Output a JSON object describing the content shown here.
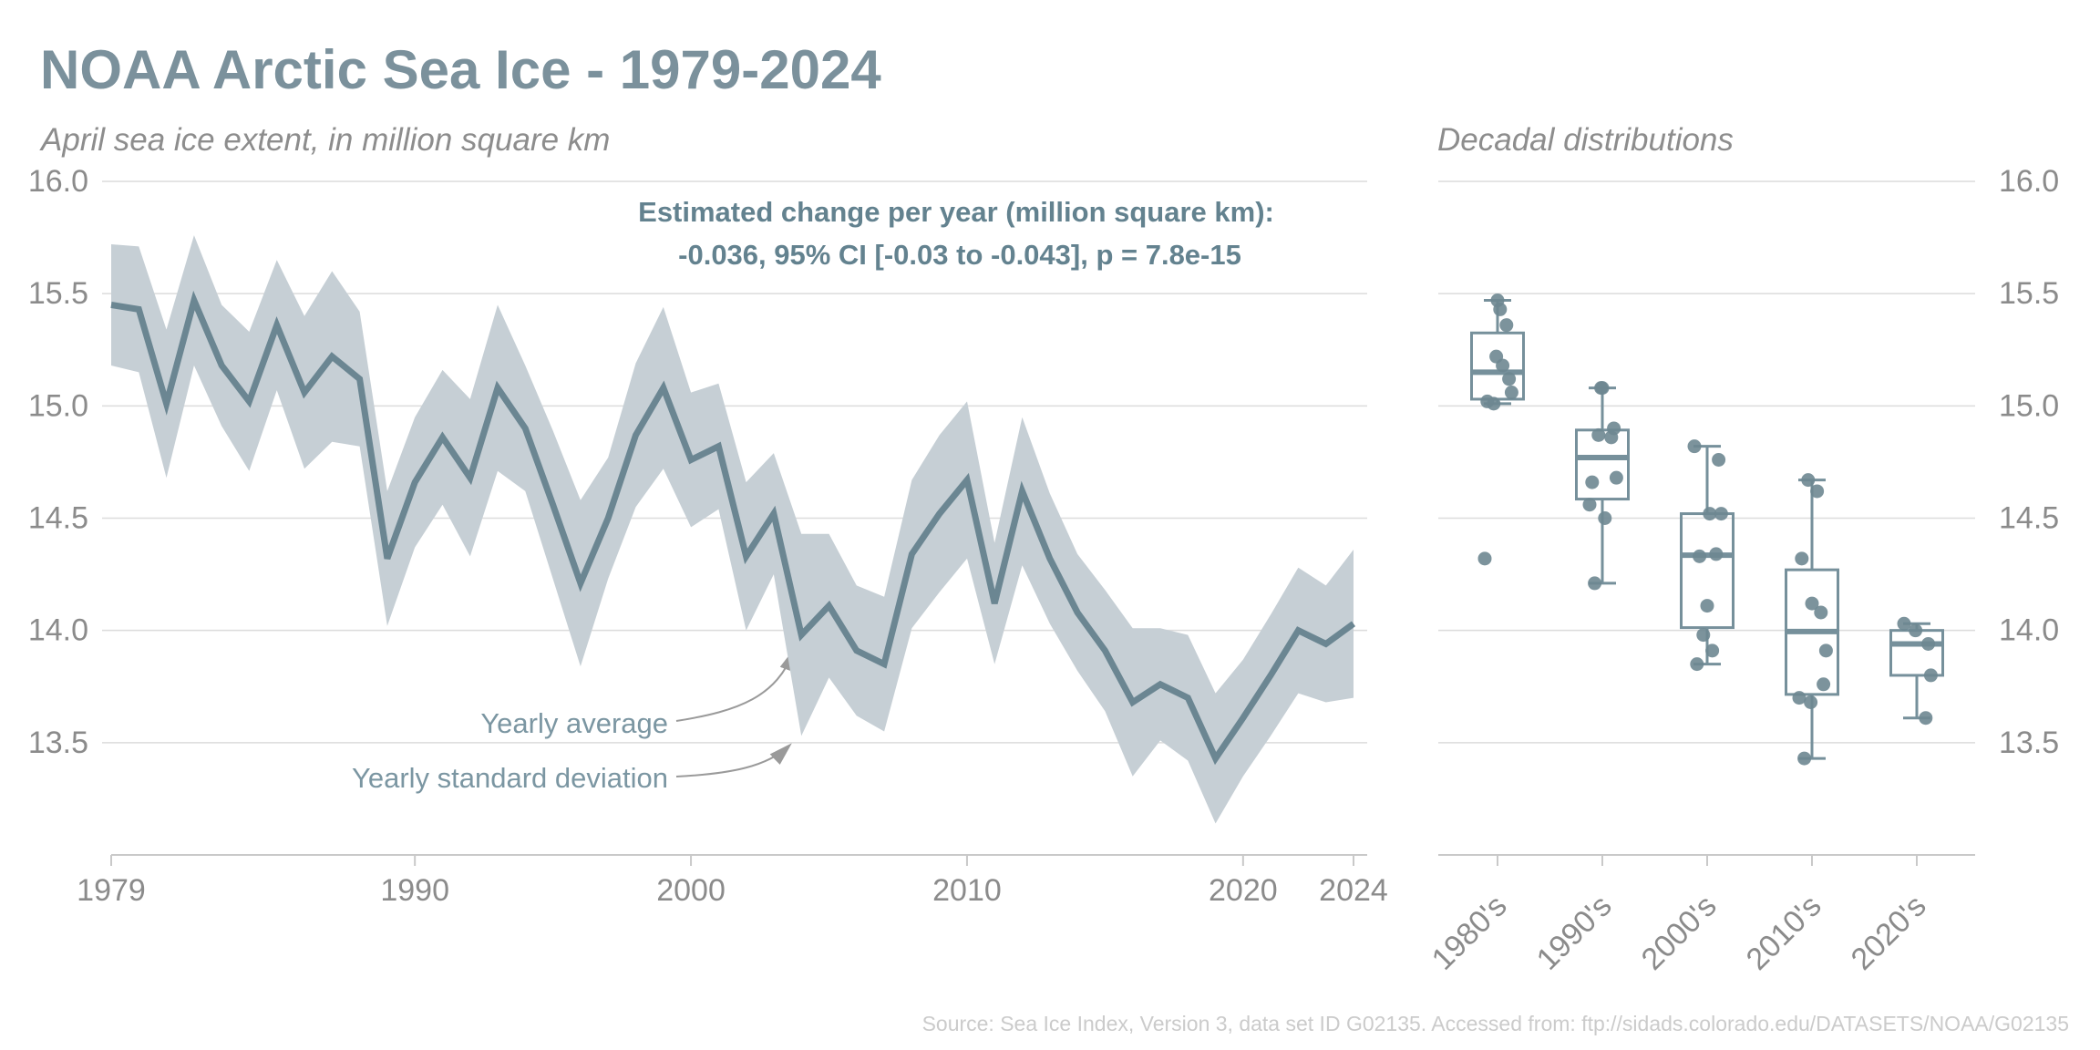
{
  "header": {
    "title": "NOAA Arctic Sea Ice - 1979-2024",
    "subtitle": "April sea ice extent, in million square km"
  },
  "right_panel": {
    "title": "Decadal distributions"
  },
  "annotations": {
    "trend_line1": "Estimated change per year (million square km):",
    "trend_line2": "-0.036, 95% CI [-0.03 to -0.043], p = 7.8e-15",
    "avg_label": "Yearly average",
    "std_label": "Yearly standard deviation"
  },
  "footer": {
    "source": "Source: Sea Ice Index, Version 3, data set ID G02135. Accessed from: ftp://sidads.colorado.edu/DATASETS/NOAA/G02135"
  },
  "colors": {
    "title": "#7b919c",
    "subtitle": "#8d8d8d",
    "line": "#6b8692",
    "band": "#c6cfd5",
    "box": "#76909b",
    "dot": "#6e8791",
    "grid": "#dcdcdc",
    "axis": "#c9c9c9",
    "tick_label": "#8b8b8b",
    "annotation": "#63828f",
    "pointer_label": "#7b96a2",
    "arrow": "#9a9a9a",
    "footer": "#cbcbcb"
  },
  "chart_data": [
    {
      "type": "line",
      "title": "April sea ice extent, in million square km",
      "ylabel": "million square km",
      "ylim": [
        13.0,
        16.0
      ],
      "y_ticks": [
        "16.0",
        "15.5",
        "15.0",
        "14.5",
        "14.0",
        "13.5"
      ],
      "y_tick_values": [
        16.0,
        15.5,
        15.0,
        14.5,
        14.0,
        13.5
      ],
      "x_ticks": [
        "1979",
        "1990",
        "2000",
        "2010",
        "2020",
        "2024"
      ],
      "x_tick_values": [
        1979,
        1990,
        2000,
        2010,
        2020,
        2024
      ],
      "grid": true,
      "series": [
        {
          "name": "Yearly average",
          "role": "mean"
        },
        {
          "name": "Yearly standard deviation",
          "role": "band"
        }
      ],
      "years": [
        1979,
        1980,
        1981,
        1982,
        1983,
        1984,
        1985,
        1986,
        1987,
        1988,
        1989,
        1990,
        1991,
        1992,
        1993,
        1994,
        1995,
        1996,
        1997,
        1998,
        1999,
        2000,
        2001,
        2002,
        2003,
        2004,
        2005,
        2006,
        2007,
        2008,
        2009,
        2010,
        2011,
        2012,
        2013,
        2014,
        2015,
        2016,
        2017,
        2018,
        2019,
        2020,
        2021,
        2022,
        2023,
        2024
      ],
      "mean": [
        15.45,
        15.43,
        15.01,
        15.47,
        15.18,
        15.02,
        15.36,
        15.06,
        15.22,
        15.12,
        14.32,
        14.66,
        14.86,
        14.68,
        15.08,
        14.9,
        14.56,
        14.21,
        14.5,
        14.87,
        15.08,
        14.76,
        14.82,
        14.33,
        14.52,
        13.98,
        14.11,
        13.91,
        13.85,
        14.34,
        14.52,
        14.67,
        14.12,
        14.62,
        14.32,
        14.08,
        13.91,
        13.68,
        13.76,
        13.7,
        13.43,
        13.61,
        13.8,
        14.0,
        13.94,
        14.03
      ],
      "std": [
        0.27,
        0.28,
        0.33,
        0.29,
        0.27,
        0.31,
        0.29,
        0.34,
        0.38,
        0.3,
        0.3,
        0.29,
        0.3,
        0.35,
        0.37,
        0.28,
        0.33,
        0.37,
        0.27,
        0.32,
        0.36,
        0.3,
        0.28,
        0.33,
        0.27,
        0.45,
        0.32,
        0.29,
        0.3,
        0.33,
        0.35,
        0.35,
        0.27,
        0.33,
        0.29,
        0.26,
        0.27,
        0.33,
        0.25,
        0.28,
        0.29,
        0.26,
        0.27,
        0.28,
        0.26,
        0.33
      ]
    },
    {
      "type": "box",
      "title": "Decadal distributions",
      "ylim": [
        13.0,
        16.0
      ],
      "y_ticks": [
        "16.0",
        "15.5",
        "15.0",
        "14.5",
        "14.0",
        "13.5"
      ],
      "y_tick_values": [
        16.0,
        15.5,
        15.0,
        14.5,
        14.0,
        13.5
      ],
      "categories": [
        "1980's",
        "1990's",
        "2000's",
        "2010's",
        "2020's"
      ],
      "groups": [
        {
          "label": "1980's",
          "values": [
            15.43,
            15.01,
            15.47,
            15.18,
            15.02,
            15.36,
            15.06,
            15.22,
            15.12,
            14.32
          ]
        },
        {
          "label": "1990's",
          "values": [
            14.66,
            14.86,
            14.68,
            15.08,
            14.9,
            14.56,
            14.21,
            14.5,
            14.87,
            15.08
          ]
        },
        {
          "label": "2000's",
          "values": [
            14.76,
            14.82,
            14.33,
            14.52,
            13.98,
            14.11,
            13.91,
            13.85,
            14.34,
            14.52
          ]
        },
        {
          "label": "2010's",
          "values": [
            14.67,
            14.12,
            14.62,
            14.32,
            14.08,
            13.91,
            13.68,
            13.76,
            13.7,
            13.43
          ]
        },
        {
          "label": "2020's",
          "values": [
            13.61,
            13.8,
            14.0,
            13.94,
            14.03
          ]
        }
      ]
    }
  ]
}
